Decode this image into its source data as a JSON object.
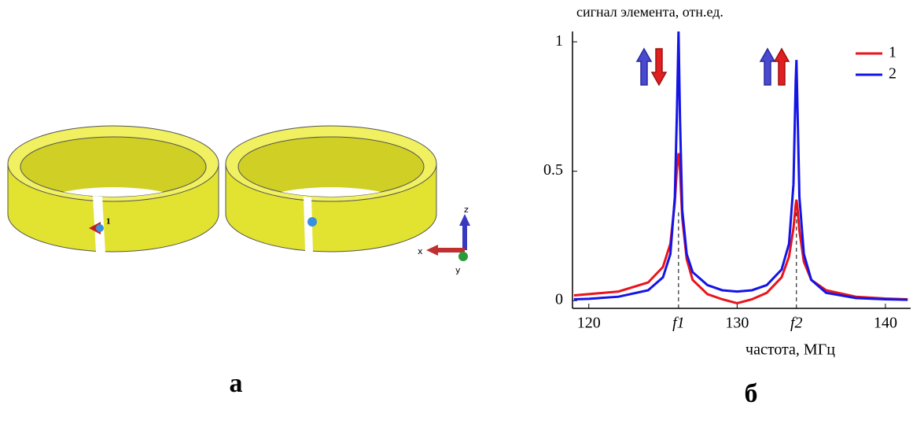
{
  "panels": {
    "left_label": "а",
    "right_label": "б"
  },
  "scene": {
    "port_label": "1",
    "axis_labels": [
      "z",
      "x",
      "y"
    ]
  },
  "chart_data": {
    "type": "line",
    "title": "сигнал элемента, отн.ед.",
    "x_label": "частота, МГц",
    "x": [
      119,
      120,
      122,
      124,
      125,
      125.5,
      125.8,
      125.95,
      126.05,
      126.15,
      126.3,
      126.6,
      127,
      128,
      129,
      130,
      131,
      132,
      133,
      133.5,
      133.8,
      133.95,
      134.0,
      134.05,
      134.2,
      134.5,
      135,
      136,
      138,
      140,
      141.5
    ],
    "series": [
      {
        "name": "1",
        "color": "#e8141c",
        "values": [
          0.02,
          0.025,
          0.035,
          0.07,
          0.13,
          0.22,
          0.38,
          0.52,
          0.57,
          0.5,
          0.32,
          0.16,
          0.08,
          0.025,
          0.005,
          -0.01,
          0.005,
          0.03,
          0.09,
          0.17,
          0.28,
          0.37,
          0.39,
          0.37,
          0.27,
          0.15,
          0.08,
          0.04,
          0.015,
          0.008,
          0.005
        ]
      },
      {
        "name": "2",
        "color": "#1414e6",
        "values": [
          0.005,
          0.007,
          0.015,
          0.04,
          0.09,
          0.18,
          0.4,
          0.75,
          1.04,
          0.7,
          0.35,
          0.18,
          0.11,
          0.06,
          0.04,
          0.035,
          0.04,
          0.06,
          0.12,
          0.22,
          0.45,
          0.85,
          0.93,
          0.8,
          0.4,
          0.18,
          0.08,
          0.03,
          0.01,
          0.005,
          0.003
        ]
      }
    ],
    "xlim": [
      118.9,
      141.7
    ],
    "ylim": [
      -0.03,
      1.04
    ],
    "xticks": [
      120,
      {
        "value": 126.05,
        "label": "f1"
      },
      130,
      {
        "value": 134.0,
        "label": "f2"
      },
      140
    ],
    "yticks": [
      0,
      0.5,
      1
    ],
    "grid": false,
    "legend": "upper right"
  }
}
